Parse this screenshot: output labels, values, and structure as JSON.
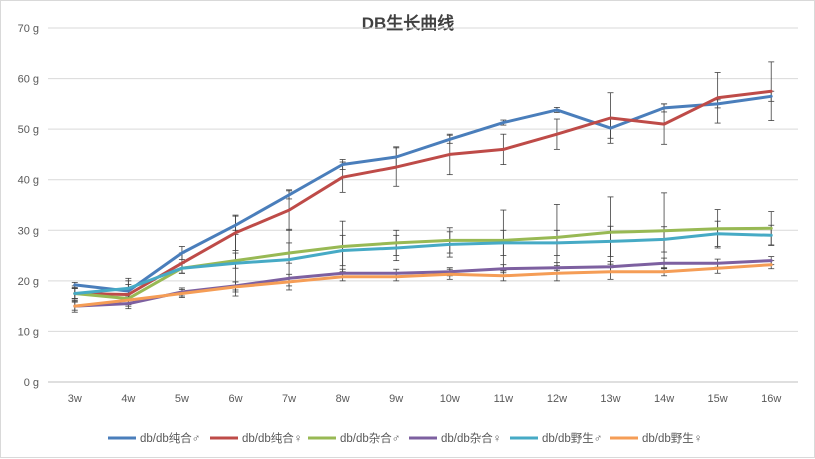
{
  "chart_data": {
    "type": "line",
    "title": "DB生长曲线",
    "xlabel": "",
    "ylabel": "",
    "ylim": [
      0,
      70
    ],
    "y_ticks": [
      0,
      10,
      20,
      30,
      40,
      50,
      60,
      70
    ],
    "y_tick_labels": [
      "0 g",
      "10 g",
      "20 g",
      "30 g",
      "40 g",
      "50 g",
      "60 g",
      "70 g"
    ],
    "grid": true,
    "legend_position": "bottom",
    "categories": [
      "3w",
      "4w",
      "5w",
      "6w",
      "7w",
      "8w",
      "9w",
      "10w",
      "11w",
      "12w",
      "13w",
      "14w",
      "15w",
      "16w"
    ],
    "series": [
      {
        "name": "db/db纯合♂",
        "color": "#4a7ebb",
        "values": [
          19.2,
          18.0,
          25.5,
          31.0,
          37.0,
          43.0,
          44.5,
          48.0,
          51.3,
          53.8,
          50.2,
          54.2,
          55.0,
          56.5
        ],
        "errors": [
          0.5,
          2.5,
          1.3,
          1.8,
          0.8,
          1.0,
          2.0,
          0.8,
          0.5,
          0.5,
          2.0,
          0.8,
          0.8,
          1.0
        ]
      },
      {
        "name": "db/db纯合♀",
        "color": "#be4b48",
        "values": [
          17.5,
          17.3,
          23.5,
          29.5,
          34.0,
          40.5,
          42.5,
          45.0,
          46.0,
          49.0,
          52.2,
          51.0,
          56.2,
          57.5
        ],
        "errors": [
          1.5,
          2.0,
          2.0,
          3.5,
          4.0,
          3.0,
          3.8,
          4.0,
          3.0,
          3.0,
          5.0,
          4.0,
          5.0,
          5.8
        ]
      },
      {
        "name": "db/db杂合♂",
        "color": "#98b954",
        "values": [
          17.5,
          16.5,
          22.5,
          24.0,
          25.5,
          26.8,
          27.5,
          28.0,
          28.0,
          28.6,
          29.6,
          29.9,
          30.3,
          30.4
        ],
        "errors": [
          1.0,
          1.0,
          1.0,
          1.5,
          2.0,
          5.0,
          2.5,
          2.5,
          6.0,
          6.5,
          7.0,
          7.5,
          3.8,
          3.3
        ]
      },
      {
        "name": "db/db杂合♀",
        "color": "#7d60a0",
        "values": [
          15.0,
          15.5,
          17.8,
          19.0,
          20.5,
          21.5,
          21.5,
          21.8,
          22.4,
          22.6,
          22.8,
          23.5,
          23.5,
          24.0
        ],
        "errors": [
          0.8,
          1.0,
          0.8,
          0.8,
          0.8,
          0.8,
          0.8,
          0.8,
          0.8,
          1.0,
          1.0,
          1.0,
          0.8,
          0.8
        ]
      },
      {
        "name": "db/db野生♂",
        "color": "#46aac5",
        "values": [
          17.5,
          18.5,
          22.5,
          23.5,
          24.2,
          26.0,
          26.5,
          27.2,
          27.5,
          27.5,
          27.8,
          28.2,
          29.3,
          29.0
        ],
        "errors": [
          1.0,
          1.5,
          1.0,
          6.5,
          6.0,
          3.0,
          2.5,
          2.5,
          2.5,
          2.5,
          3.0,
          2.5,
          2.5,
          2.0
        ]
      },
      {
        "name": "db/db野生♀",
        "color": "#f59d56",
        "values": [
          15.0,
          16.2,
          17.5,
          18.8,
          19.8,
          20.8,
          20.8,
          21.3,
          21.0,
          21.5,
          21.8,
          21.8,
          22.5,
          23.2
        ],
        "errors": [
          1.2,
          1.2,
          0.8,
          1.0,
          0.8,
          0.8,
          0.8,
          1.0,
          1.0,
          1.5,
          1.5,
          0.8,
          1.0,
          0.8
        ]
      }
    ]
  }
}
